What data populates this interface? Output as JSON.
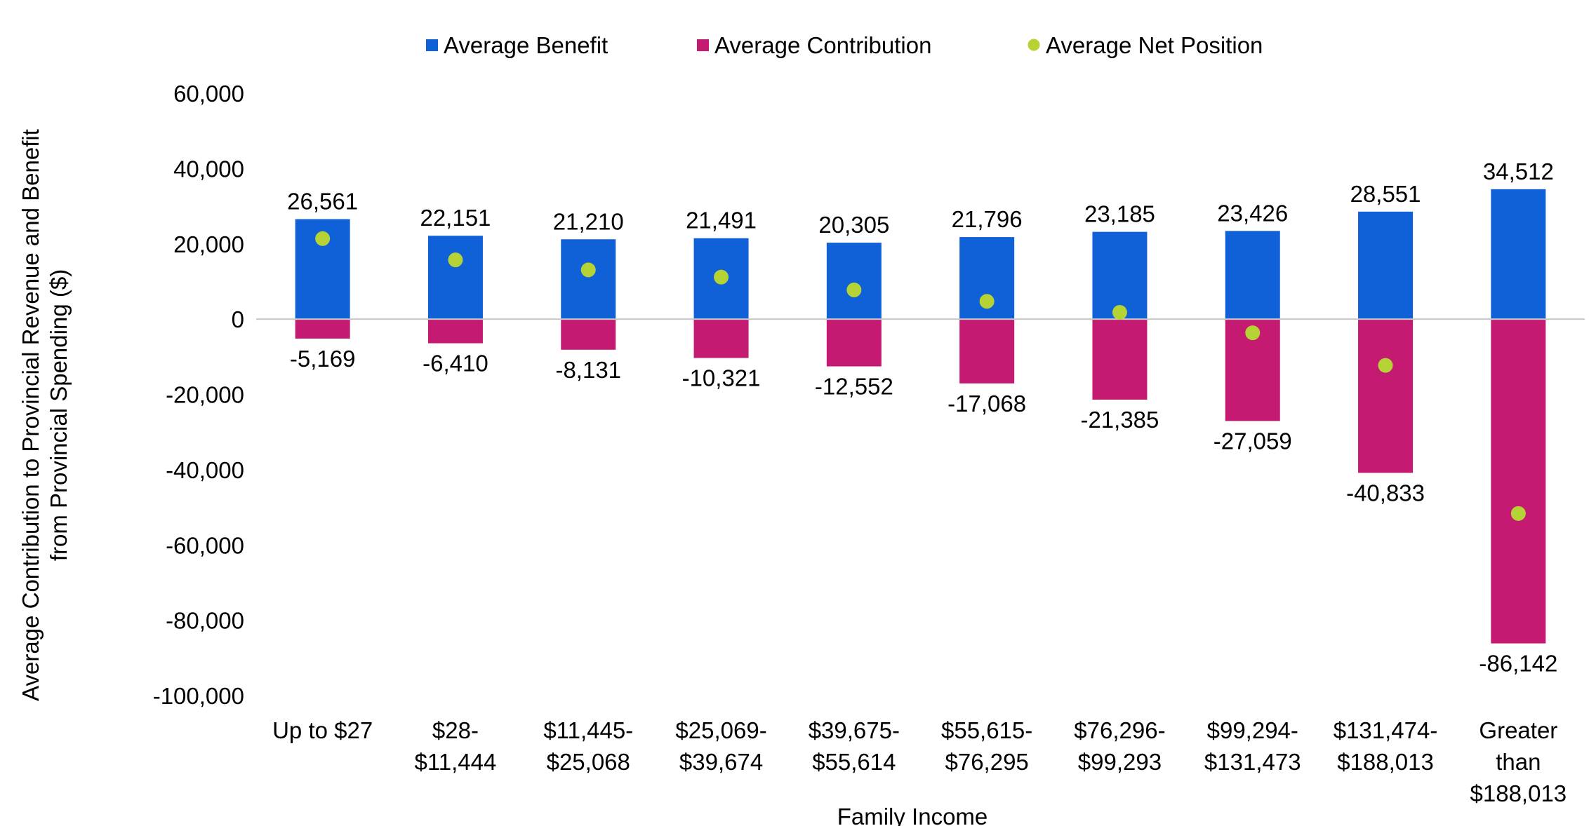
{
  "chart_data": {
    "type": "bar",
    "title": "",
    "xlabel": "Family Income",
    "ylabel_lines": [
      "Average Contribution to Provincial Revenue and Benefit",
      "from Provincial Spending ($)"
    ],
    "ylim": [
      -100000,
      60000
    ],
    "yticks": [
      60000,
      40000,
      20000,
      0,
      -20000,
      -40000,
      -60000,
      -80000,
      -100000
    ],
    "ytick_labels": [
      "60,000",
      "40,000",
      "20,000",
      "0",
      "-20,000",
      "-40,000",
      "-60,000",
      "-80,000",
      "-100,000"
    ],
    "legend_position": "top-center",
    "categories": [
      [
        "Up to $27"
      ],
      [
        "$28-",
        "$11,444"
      ],
      [
        "$11,445-",
        "$25,068"
      ],
      [
        "$25,069-",
        "$39,674"
      ],
      [
        "$39,675-",
        "$55,614"
      ],
      [
        "$55,615-",
        "$76,295"
      ],
      [
        "$76,296-",
        "$99,293"
      ],
      [
        "$99,294-",
        "$131,473"
      ],
      [
        "$131,474-",
        "$188,013"
      ],
      [
        "Greater",
        "than",
        "$188,013"
      ]
    ],
    "series": [
      {
        "name": "Average Benefit",
        "kind": "bar",
        "color": "#1060d8",
        "values": [
          26561,
          22151,
          21210,
          21491,
          20305,
          21796,
          23185,
          23426,
          28551,
          34512
        ],
        "labels": [
          "26,561",
          "22,151",
          "21,210",
          "21,491",
          "20,305",
          "21,796",
          "23,185",
          "23,426",
          "28,551",
          "34,512"
        ]
      },
      {
        "name": "Average Contribution",
        "kind": "bar",
        "color": "#c41a72",
        "values": [
          -5169,
          -6410,
          -8131,
          -10321,
          -12552,
          -17068,
          -21385,
          -27059,
          -40833,
          -86142
        ],
        "labels": [
          "-5,169",
          "-6,410",
          "-8,131",
          "-10,321",
          "-12,552",
          "-17,068",
          "-21,385",
          "-27,059",
          "-40,833",
          "-86,142"
        ]
      },
      {
        "name": "Average Net Position",
        "kind": "point",
        "color": "#b5d334",
        "values": [
          21392,
          15741,
          13079,
          11170,
          7753,
          4728,
          1800,
          -3633,
          -12282,
          -51630
        ]
      }
    ]
  }
}
